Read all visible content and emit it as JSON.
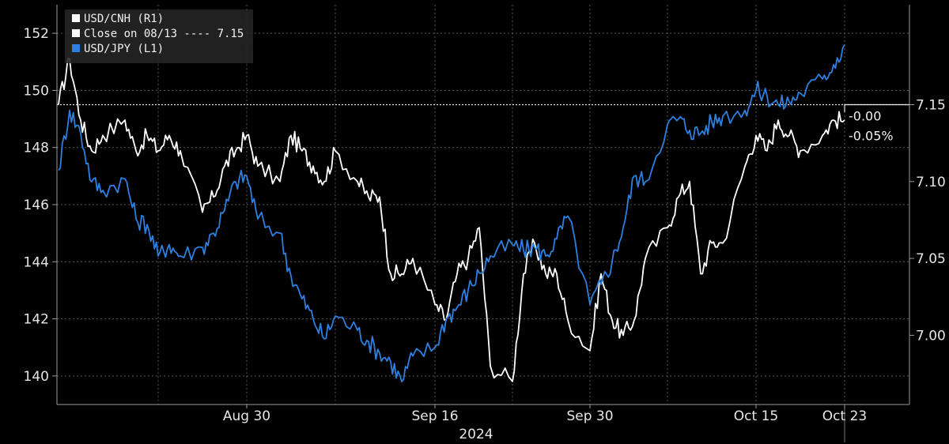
{
  "chart_data": {
    "type": "line",
    "title": "",
    "xlabel": "",
    "year_label": "2024",
    "x_ticks": [
      "Aug 30",
      "Sep 16",
      "Sep 30",
      "Oct 15",
      "Oct 23"
    ],
    "y_left": {
      "ticks": [
        "140",
        "142",
        "144",
        "146",
        "148",
        "150",
        "152"
      ],
      "range": [
        139,
        153
      ]
    },
    "y_right": {
      "ticks": [
        "7.00",
        "7.05",
        "7.10",
        "7.15"
      ],
      "range": [
        6.955,
        7.215
      ]
    },
    "grid": true,
    "legend": {
      "placement": "top-left",
      "entries": [
        "USD/CNH (R1)",
        "Close on 08/13 ---- 7.15",
        "USD/JPY (L1)"
      ]
    },
    "reference_line": {
      "label": "Close on 08/13",
      "value": 7.15,
      "axis": "right"
    },
    "callout": {
      "change": "-0.00",
      "change_pct": "-0.05%"
    },
    "series": [
      {
        "name": "USD/CNH (R1)",
        "color": "#ffffff",
        "axis": "right",
        "x": [
          "08-13",
          "08-14",
          "08-15",
          "08-16",
          "08-17",
          "08-19",
          "08-20",
          "08-21",
          "08-22",
          "08-23",
          "08-24",
          "08-26",
          "08-27",
          "08-28",
          "08-29",
          "08-30",
          "08-31",
          "09-02",
          "09-03",
          "09-04",
          "09-05",
          "09-06",
          "09-07",
          "09-09",
          "09-10",
          "09-11",
          "09-12",
          "09-13",
          "09-14",
          "09-16",
          "09-17",
          "09-18",
          "09-19",
          "09-20",
          "09-21",
          "09-23",
          "09-24",
          "09-25",
          "09-26",
          "09-27",
          "09-28",
          "09-30",
          "10-01",
          "10-02",
          "10-03",
          "10-04",
          "10-05",
          "10-07",
          "10-08",
          "10-09",
          "10-10",
          "10-11",
          "10-12",
          "10-14",
          "10-15",
          "10-16",
          "10-17",
          "10-18",
          "10-19",
          "10-21",
          "10-22",
          "10-23"
        ],
        "values": [
          7.15,
          7.18,
          7.14,
          7.12,
          7.13,
          7.14,
          7.12,
          7.13,
          7.12,
          7.13,
          7.12,
          7.08,
          7.09,
          7.11,
          7.12,
          7.13,
          7.11,
          7.1,
          7.13,
          7.12,
          7.11,
          7.1,
          7.12,
          7.1,
          7.09,
          7.09,
          7.04,
          7.04,
          7.05,
          7.02,
          7.01,
          7.04,
          7.05,
          7.07,
          6.98,
          6.97,
          7.04,
          7.06,
          7.04,
          7.04,
          7.01,
          6.99,
          7.04,
          7.01,
          7.0,
          7.01,
          7.05,
          7.07,
          7.09,
          7.1,
          7.04,
          7.06,
          7.06,
          7.11,
          7.13,
          7.12,
          7.14,
          7.13,
          7.12,
          7.13,
          7.14,
          7.14
        ]
      },
      {
        "name": "USD/JPY (L1)",
        "color": "#2e80e0",
        "axis": "left",
        "x": [
          "08-13",
          "08-14",
          "08-15",
          "08-16",
          "08-17",
          "08-19",
          "08-20",
          "08-21",
          "08-22",
          "08-23",
          "08-24",
          "08-26",
          "08-27",
          "08-28",
          "08-29",
          "08-30",
          "08-31",
          "09-02",
          "09-03",
          "09-04",
          "09-05",
          "09-06",
          "09-07",
          "09-09",
          "09-10",
          "09-11",
          "09-12",
          "09-13",
          "09-14",
          "09-16",
          "09-17",
          "09-18",
          "09-19",
          "09-20",
          "09-21",
          "09-23",
          "09-24",
          "09-25",
          "09-26",
          "09-27",
          "09-28",
          "09-30",
          "10-01",
          "10-02",
          "10-03",
          "10-04",
          "10-05",
          "10-07",
          "10-08",
          "10-09",
          "10-10",
          "10-11",
          "10-12",
          "10-14",
          "10-15",
          "10-16",
          "10-17",
          "10-18",
          "10-19",
          "10-21",
          "10-22",
          "10-23"
        ],
        "values": [
          147.2,
          149.3,
          148.5,
          146.8,
          146.5,
          146.9,
          145.5,
          145.3,
          144.2,
          144.6,
          144.2,
          144.5,
          145.0,
          145.8,
          146.8,
          147.0,
          145.5,
          145.0,
          143.5,
          142.7,
          142.0,
          141.3,
          142.1,
          141.6,
          141.2,
          140.8,
          140.5,
          139.8,
          140.7,
          141.0,
          142.0,
          142.4,
          143.0,
          143.6,
          144.2,
          144.6,
          144.4,
          144.5,
          144.2,
          144.8,
          145.6,
          142.5,
          143.2,
          144.0,
          145.2,
          147.0,
          146.8,
          148.8,
          149.0,
          148.6,
          148.5,
          148.9,
          149.1,
          149.3,
          150.0,
          149.8,
          149.5,
          149.6,
          149.9,
          150.4,
          150.9,
          151.6
        ]
      }
    ]
  }
}
